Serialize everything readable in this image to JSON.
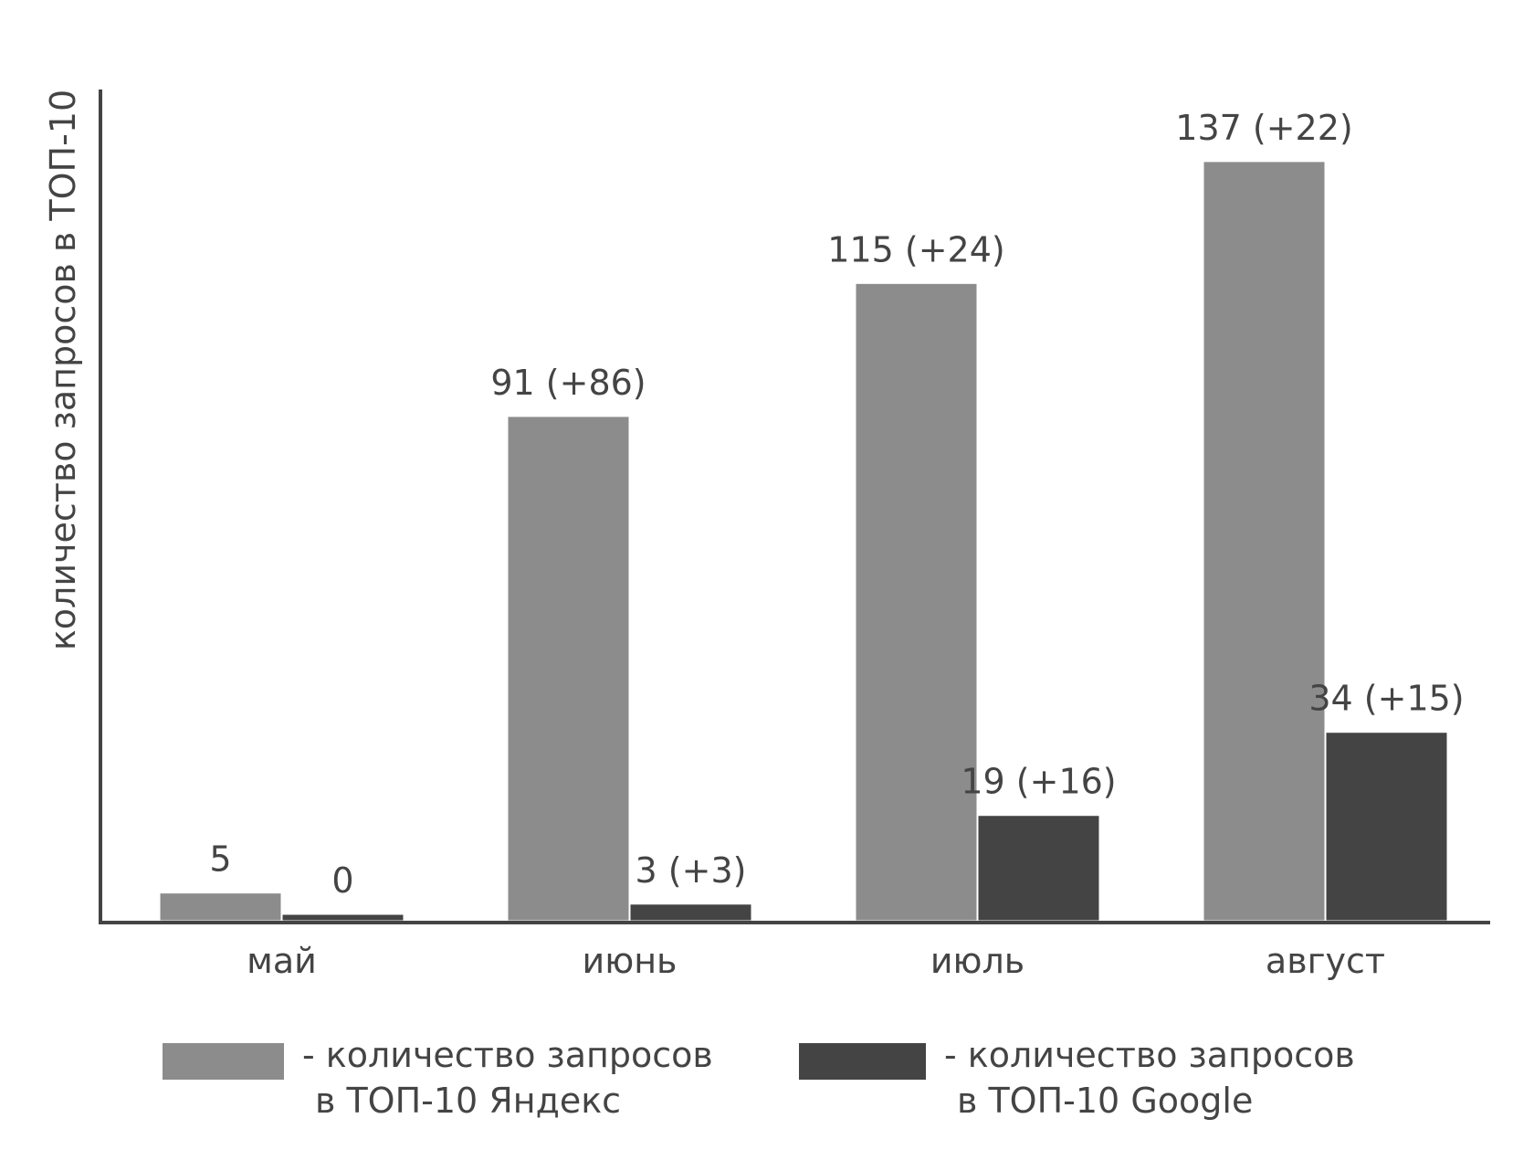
{
  "chart_data": {
    "type": "bar",
    "title": "",
    "xlabel": "",
    "ylabel": "количество запросов в ТОП-10",
    "categories": [
      "май",
      "июнь",
      "июль",
      "август"
    ],
    "ylim": [
      0,
      150
    ],
    "grid": false,
    "legend_position": "bottom",
    "series": [
      {
        "name": "- количество запросов в ТОП-10 Яндекс",
        "legend_lines": [
          "- количество запросов",
          "в ТОП-10 Яндекс"
        ],
        "color": "#8c8c8c",
        "values": [
          5,
          91,
          115,
          137
        ],
        "labels": [
          "5",
          "91 (+86)",
          "115 (+24)",
          "137 (+22)"
        ]
      },
      {
        "name": "- количество запросов в ТОП-10 Google",
        "legend_lines": [
          "- количество запросов",
          "в ТОП-10 Google"
        ],
        "color": "#444444",
        "values": [
          0,
          3,
          19,
          34
        ],
        "labels": [
          "0",
          "3 (+3)",
          "19 (+16)",
          "34 (+15)"
        ]
      }
    ]
  }
}
